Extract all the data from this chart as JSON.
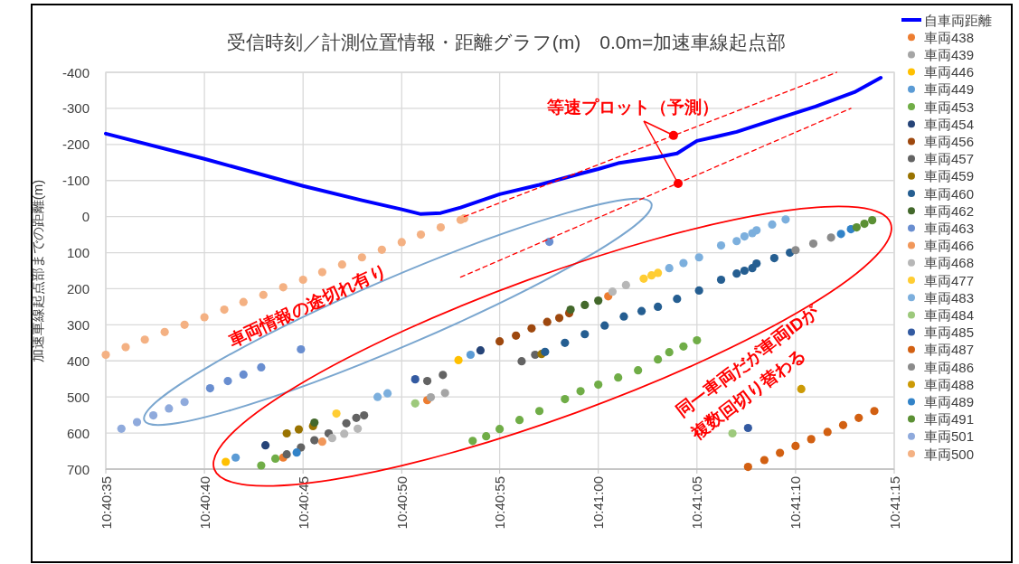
{
  "chart_data": {
    "type": "scatter",
    "title": "受信時刻／計測位置情報・距離グラフ(m)　0.0m=加速車線起点部",
    "ylabel": "加速車線起点部までの距離(m)",
    "annotations": [
      {
        "text": "等速プロット（予測）",
        "x": 10.68439,
        "y": -225
      },
      "車両情報の途切れ有り",
      "同一車両だが車両IDが",
      "複数回切り替わる"
    ],
    "xlim": [
      10.67639,
      10.6875
    ],
    "xticks": [
      {
        "value": 10.67639,
        "label": "10:40:35"
      },
      {
        "value": 10.67778,
        "label": "10:40:40"
      },
      {
        "value": 10.67917,
        "label": "10:40:45"
      },
      {
        "value": 10.68056,
        "label": "10:40:50"
      },
      {
        "value": 10.68194,
        "label": "10:40:55"
      },
      {
        "value": 10.68333,
        "label": "10:41:00"
      },
      {
        "value": 10.68472,
        "label": "10:41:05"
      },
      {
        "value": 10.68611,
        "label": "10:41:10"
      },
      {
        "value": 10.6875,
        "label": "10:41:15"
      }
    ],
    "ylim": [
      700,
      -400
    ],
    "yticks": [
      -400,
      -300,
      -200,
      -100,
      0,
      100,
      200,
      300,
      400,
      500,
      600,
      700
    ],
    "grid": true,
    "legend": "right",
    "marker": "circle",
    "series": [
      {
        "name": "自車両距離",
        "type": "line",
        "marker": "none",
        "color": "#0000ff",
        "x": [
          10.67639,
          10.67778,
          10.67917,
          10.68,
          10.68056,
          10.68083,
          10.68111,
          10.68139,
          10.68194,
          10.6825,
          10.68306,
          10.68333,
          10.68361,
          10.68417,
          10.68444,
          10.68472,
          10.685,
          10.68528,
          10.68583,
          10.68639,
          10.68694,
          10.68731
        ],
        "values": [
          -230,
          -160,
          -85,
          -45,
          -20,
          -7,
          -10,
          -25,
          -62,
          -88,
          -118,
          -132,
          -148,
          -165,
          -175,
          -210,
          -222,
          -235,
          -270,
          -305,
          -345,
          -385
        ]
      },
      {
        "name": "車両438",
        "color": "#ed7d31",
        "x": [
          10.67889,
          10.68092,
          10.68347
        ],
        "values": [
          668,
          509,
          221
        ]
      },
      {
        "name": "車両439",
        "color": "#a5a5a5",
        "x": [
          10.68097,
          10.68117
        ],
        "values": [
          501,
          489
        ]
      },
      {
        "name": "車両446",
        "color": "#ffc000",
        "x": [
          10.67808,
          10.68136
        ],
        "values": [
          680,
          398
        ]
      },
      {
        "name": "車両449",
        "color": "#5b9bd5",
        "x": [
          10.67822,
          10.68153
        ],
        "values": [
          668,
          383
        ]
      },
      {
        "name": "車両453",
        "color": "#70ad47",
        "x": [
          10.67858,
          10.67878,
          10.68156,
          10.68175,
          10.68194,
          10.68222,
          10.6825,
          10.68286,
          10.68308,
          10.68333,
          10.68361,
          10.68389,
          10.68417,
          10.68433,
          10.68453,
          10.68472
        ],
        "values": [
          690,
          671,
          622,
          609,
          589,
          564,
          539,
          506,
          484,
          466,
          446,
          426,
          396,
          376,
          360,
          343
        ]
      },
      {
        "name": "車両454",
        "color": "#264478",
        "x": [
          10.67864,
          10.68167
        ],
        "values": [
          634,
          371
        ]
      },
      {
        "name": "車両456",
        "color": "#9e480e",
        "x": [
          10.68194,
          10.68217,
          10.68239,
          10.68261,
          10.68278,
          10.68292
        ],
        "values": [
          346,
          330,
          310,
          292,
          281,
          268
        ]
      },
      {
        "name": "車両457",
        "color": "#636363",
        "x": [
          10.67894,
          10.67914,
          10.67933,
          10.67953,
          10.67978,
          10.67992,
          10.68003,
          10.68092,
          10.68114,
          10.68225,
          10.68244
        ],
        "values": [
          659,
          640,
          620,
          601,
          573,
          558,
          551,
          456,
          439,
          401,
          383
        ]
      },
      {
        "name": "車両459",
        "color": "#997300",
        "x": [
          10.67894,
          10.67911,
          10.67931,
          10.68253
        ],
        "values": [
          601,
          590,
          581,
          381
        ]
      },
      {
        "name": "車両460",
        "color": "#255e91",
        "x": [
          10.68258,
          10.68286,
          10.68314,
          10.68342,
          10.68369,
          10.68394,
          10.68417,
          10.68444,
          10.68475,
          10.68506,
          10.68528,
          10.68539,
          10.6855,
          10.68556,
          10.68581,
          10.68603
        ],
        "values": [
          375,
          350,
          326,
          302,
          277,
          262,
          250,
          228,
          205,
          175,
          158,
          150,
          143,
          130,
          115,
          100
        ]
      },
      {
        "name": "車両462",
        "color": "#43682b",
        "x": [
          10.67933,
          10.68294,
          10.68314,
          10.68333
        ],
        "values": [
          571,
          258,
          245,
          233
        ]
      },
      {
        "name": "車両463",
        "color": "#698ed0",
        "x": [
          10.67786,
          10.67811,
          10.67833,
          10.67858,
          10.67914,
          10.68264
        ],
        "values": [
          476,
          456,
          438,
          418,
          368,
          70
        ]
      },
      {
        "name": "車両466",
        "color": "#f1975a",
        "x": [
          10.67944
        ],
        "values": [
          624
        ]
      },
      {
        "name": "車両468",
        "color": "#b7b7b7",
        "x": [
          10.67958,
          10.67975,
          10.67994,
          10.68353,
          10.68372
        ],
        "values": [
          614,
          602,
          588,
          208,
          190
        ]
      },
      {
        "name": "車両477",
        "color": "#ffcd33",
        "x": [
          10.67964,
          10.68397,
          10.68408,
          10.68417
        ],
        "values": [
          546,
          172,
          163,
          156
        ]
      },
      {
        "name": "車両483",
        "color": "#7cafdd",
        "x": [
          10.68022,
          10.68036,
          10.68433,
          10.68453,
          10.68475,
          10.68506,
          10.68528,
          10.68539,
          10.6855,
          10.68556,
          10.68578,
          10.68597
        ],
        "values": [
          500,
          490,
          143,
          129,
          113,
          80,
          68,
          55,
          46,
          38,
          22,
          8
        ]
      },
      {
        "name": "車両484",
        "color": "#9dc97c",
        "x": [
          10.68075,
          10.68522
        ],
        "values": [
          518,
          601
        ]
      },
      {
        "name": "車両485",
        "color": "#335aa1",
        "x": [
          10.68075,
          10.68544
        ],
        "values": [
          451,
          586
        ]
      },
      {
        "name": "車両487",
        "color": "#d26012",
        "x": [
          10.68544,
          10.68567,
          10.68589,
          10.68611,
          10.68633,
          10.68656,
          10.68678,
          10.687,
          10.68722
        ],
        "values": [
          694,
          675,
          655,
          636,
          617,
          597,
          578,
          558,
          539
        ]
      },
      {
        "name": "車両486",
        "color": "#8b8b8b",
        "x": [
          10.68611,
          10.68636,
          10.68661
        ],
        "values": [
          93,
          75,
          58
        ]
      },
      {
        "name": "車両488",
        "color": "#cc9a06",
        "x": [
          10.68619
        ],
        "values": [
          478
        ]
      },
      {
        "name": "車両489",
        "color": "#3283c8",
        "x": [
          10.67908,
          10.68675,
          10.68689
        ],
        "values": [
          654,
          48,
          35
        ]
      },
      {
        "name": "車両491",
        "color": "#5b9034",
        "x": [
          10.68697,
          10.68708,
          10.68719
        ],
        "values": [
          30,
          20,
          10
        ]
      },
      {
        "name": "車両501",
        "color": "#8faadc",
        "x": [
          10.67661,
          10.67683,
          10.67706,
          10.67728,
          10.6775
        ],
        "values": [
          588,
          570,
          551,
          532,
          514
        ]
      },
      {
        "name": "車両500",
        "color": "#f4b183",
        "x": [
          10.67639,
          10.67667,
          10.67694,
          10.67722,
          10.6775,
          10.67778,
          10.67806,
          10.67833,
          10.67861,
          10.67889,
          10.67917,
          10.67944,
          10.67972,
          10.68,
          10.68028,
          10.68056,
          10.68083,
          10.68111,
          10.68139,
          10.68144
        ],
        "values": [
          383,
          362,
          341,
          320,
          300,
          279,
          258,
          237,
          217,
          196,
          175,
          154,
          133,
          113,
          92,
          71,
          50,
          30,
          9,
          5
        ]
      },
      {
        "type": "line",
        "marker": "none",
        "line_style": "dashed",
        "color": "#ff0000",
        "x": [
          10.68144,
          10.68669
        ],
        "values": [
          0,
          -400
        ]
      },
      {
        "type": "line",
        "marker": "none",
        "line_style": "dashed",
        "color": "#ff0000",
        "x": [
          10.68139,
          10.68689
        ],
        "values": [
          168,
          -300
        ]
      }
    ]
  }
}
